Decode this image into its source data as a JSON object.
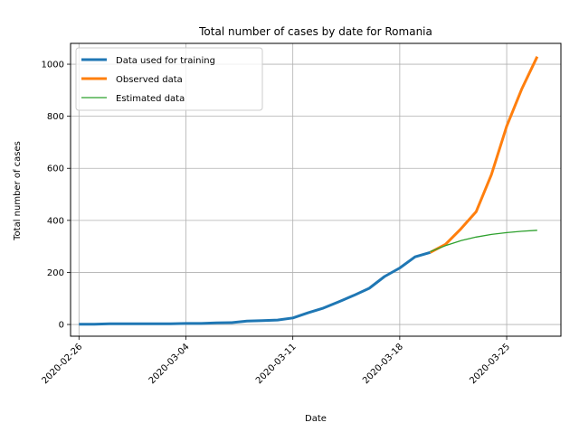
{
  "chart_data": {
    "type": "line",
    "title": "Total number of cases by date for Romania",
    "xlabel": "Date",
    "ylabel": "Total number of cases",
    "x_ticks": [
      "2020-02-26",
      "2020-03-04",
      "2020-03-11",
      "2020-03-18",
      "2020-03-25"
    ],
    "y_ticks": [
      0,
      200,
      400,
      600,
      800,
      1000
    ],
    "xlim": [
      "2020-02-25",
      "2020-03-28"
    ],
    "ylim": [
      -45,
      1080
    ],
    "grid": true,
    "legend_position": "top-left",
    "series": [
      {
        "name": "Data used for training",
        "color": "#1f77b4",
        "x": [
          "2020-02-26",
          "2020-02-27",
          "2020-02-28",
          "2020-02-29",
          "2020-03-01",
          "2020-03-02",
          "2020-03-03",
          "2020-03-04",
          "2020-03-05",
          "2020-03-06",
          "2020-03-07",
          "2020-03-08",
          "2020-03-09",
          "2020-03-10",
          "2020-03-11",
          "2020-03-12",
          "2020-03-13",
          "2020-03-14",
          "2020-03-15",
          "2020-03-16",
          "2020-03-17",
          "2020-03-18",
          "2020-03-19",
          "2020-03-20"
        ],
        "y": [
          1,
          1,
          3,
          3,
          3,
          3,
          3,
          4,
          4,
          6,
          7,
          13,
          15,
          17,
          25,
          45,
          63,
          87,
          112,
          139,
          184,
          217,
          260,
          277
        ]
      },
      {
        "name": "Observed data",
        "color": "#ff7f0e",
        "x": [
          "2020-03-20",
          "2020-03-21",
          "2020-03-22",
          "2020-03-23",
          "2020-03-24",
          "2020-03-25",
          "2020-03-26",
          "2020-03-27"
        ],
        "y": [
          277,
          308,
          367,
          433,
          576,
          762,
          906,
          1029
        ]
      },
      {
        "name": "Estimated data",
        "color": "#2ca02c",
        "x": [
          "2020-03-20",
          "2020-03-21",
          "2020-03-22",
          "2020-03-23",
          "2020-03-24",
          "2020-03-25",
          "2020-03-26",
          "2020-03-27"
        ],
        "y": [
          280,
          303,
          322,
          336,
          346,
          353,
          358,
          362
        ]
      }
    ]
  }
}
